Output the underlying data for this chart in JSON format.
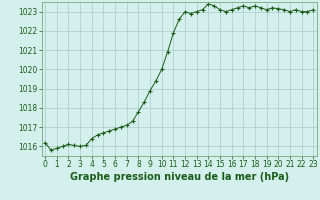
{
  "x_values": [
    0,
    0.5,
    1,
    1.5,
    2,
    2.5,
    3,
    3.5,
    4,
    4.5,
    5,
    5.5,
    6,
    6.5,
    7,
    7.5,
    8,
    8.5,
    9,
    9.5,
    10,
    10.5,
    11,
    11.5,
    12,
    12.5,
    13,
    13.5,
    14,
    14.5,
    15,
    15.5,
    16,
    16.5,
    17,
    17.5,
    18,
    18.5,
    19,
    19.5,
    20,
    20.5,
    21,
    21.5,
    22,
    22.5,
    23
  ],
  "y_values": [
    1016.2,
    1015.8,
    1015.9,
    1016.0,
    1016.1,
    1016.05,
    1016.0,
    1016.05,
    1016.4,
    1016.6,
    1016.7,
    1016.8,
    1016.9,
    1017.0,
    1017.1,
    1017.3,
    1017.8,
    1018.3,
    1018.9,
    1019.4,
    1020.0,
    1020.9,
    1021.9,
    1022.6,
    1023.0,
    1022.9,
    1023.0,
    1023.1,
    1023.4,
    1023.3,
    1023.1,
    1023.0,
    1023.1,
    1023.2,
    1023.3,
    1023.2,
    1023.3,
    1023.2,
    1023.1,
    1023.2,
    1023.15,
    1023.1,
    1023.0,
    1023.1,
    1023.0,
    1023.0,
    1023.1
  ],
  "line_color": "#1a5c1a",
  "marker_color": "#1a5c1a",
  "bg_color": "#d4f0ec",
  "grid_color": "#a8cccc",
  "border_color": "#669966",
  "ylim": [
    1015.5,
    1023.5
  ],
  "xlim": [
    -0.3,
    23.3
  ],
  "yticks": [
    1016,
    1017,
    1018,
    1019,
    1020,
    1021,
    1022,
    1023
  ],
  "xticks": [
    0,
    1,
    2,
    3,
    4,
    5,
    6,
    7,
    8,
    9,
    10,
    11,
    12,
    13,
    14,
    15,
    16,
    17,
    18,
    19,
    20,
    21,
    22,
    23
  ],
  "xlabel": "Graphe pression niveau de la mer (hPa)",
  "xlabel_fontsize": 7,
  "tick_fontsize": 5.5
}
